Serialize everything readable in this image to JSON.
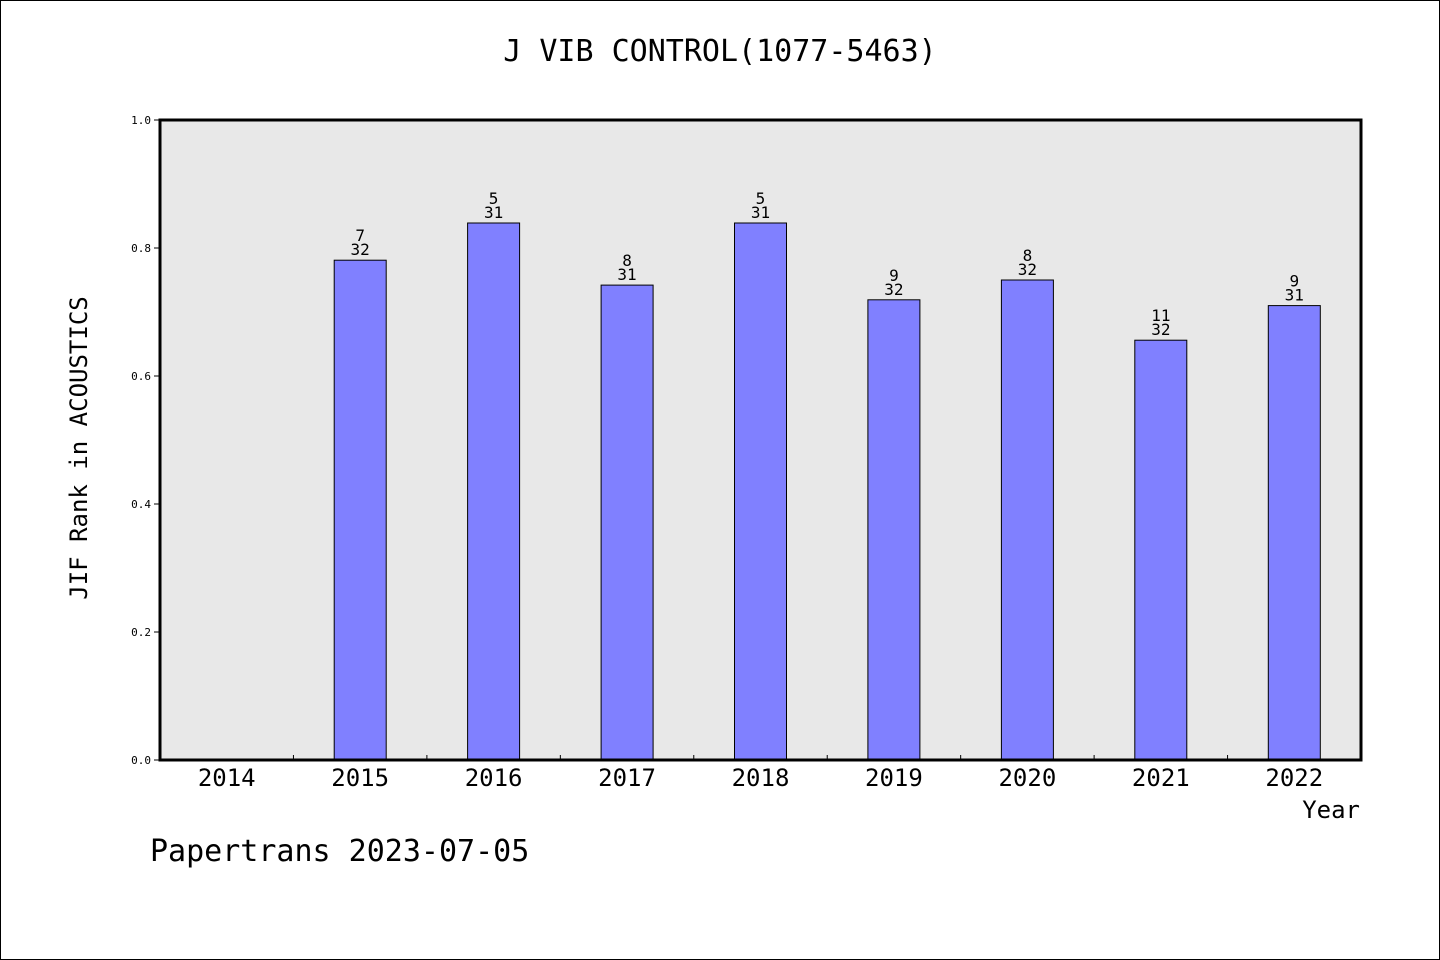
{
  "chart_data": {
    "type": "bar",
    "title": "J VIB CONTROL(1077-5463)",
    "xlabel": "Year",
    "ylabel": "JIF Rank in ACOUSTICS",
    "ylim": [
      0,
      1.0
    ],
    "yticks": [
      "0.0",
      "0.2",
      "0.4",
      "0.6",
      "0.8",
      "1.0"
    ],
    "categories": [
      "2014",
      "2015",
      "2016",
      "2017",
      "2018",
      "2019",
      "2020",
      "2021",
      "2022"
    ],
    "values": [
      null,
      0.781,
      0.839,
      0.742,
      0.839,
      0.719,
      0.75,
      0.656,
      0.71
    ],
    "rank_labels": [
      null,
      {
        "rank": "7",
        "total": "32"
      },
      {
        "rank": "5",
        "total": "31"
      },
      {
        "rank": "8",
        "total": "31"
      },
      {
        "rank": "5",
        "total": "31"
      },
      {
        "rank": "9",
        "total": "32"
      },
      {
        "rank": "8",
        "total": "32"
      },
      {
        "rank": "11",
        "total": "32"
      },
      {
        "rank": "9",
        "total": "31"
      }
    ],
    "grid": false,
    "colors": {
      "bar": "#8080ff",
      "plot_background": "#e8e8e8",
      "axis": "#000000"
    }
  },
  "footer": {
    "text": "Papertrans 2023-07-05"
  }
}
